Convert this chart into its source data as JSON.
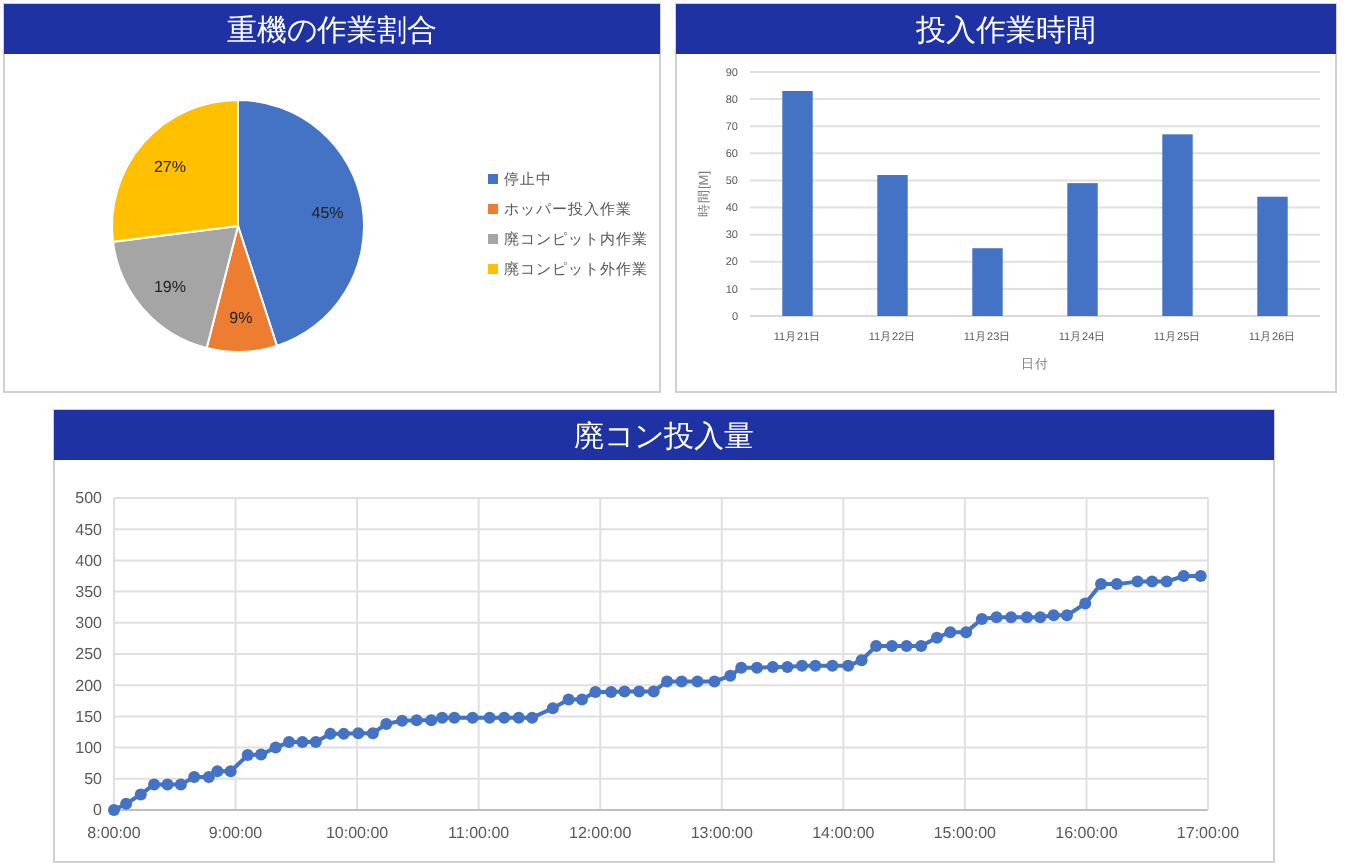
{
  "chart_data": [
    {
      "type": "pie",
      "title": "重機の作業割合",
      "categories": [
        "停止中",
        "ホッパー投入作業",
        "廃コンピット内作業",
        "廃コンピット外作業"
      ],
      "values": [
        45,
        9,
        19,
        27
      ],
      "colors": [
        "#4472c4",
        "#ed7d31",
        "#a5a5a5",
        "#ffc000"
      ],
      "value_labels": [
        "45%",
        "9%",
        "19%",
        "27%"
      ],
      "legend": "right"
    },
    {
      "type": "bar",
      "title": "投入作業時間",
      "categories": [
        "11月21日",
        "11月22日",
        "11月23日",
        "11月24日",
        "11月25日",
        "11月26日"
      ],
      "values": [
        83,
        52,
        25,
        49,
        67,
        44
      ],
      "color": "#4472c4",
      "xlabel": "日付",
      "ylabel": "時間[M]",
      "ylim": [
        0,
        90
      ],
      "yticks": [
        0,
        10,
        20,
        30,
        40,
        50,
        60,
        70,
        80,
        90
      ],
      "grid": "y"
    },
    {
      "type": "line",
      "title": "廃コン投入量",
      "series": [
        {
          "color": "#4472c4",
          "x": [
            8.0,
            8.1,
            8.22,
            8.33,
            8.44,
            8.55,
            8.66,
            8.78,
            8.85,
            8.96,
            9.1,
            9.21,
            9.33,
            9.44,
            9.55,
            9.66,
            9.78,
            9.89,
            10.01,
            10.13,
            10.24,
            10.37,
            10.49,
            10.61,
            10.7,
            10.8,
            10.95,
            11.09,
            11.21,
            11.33,
            11.44,
            11.61,
            11.74,
            11.85,
            11.96,
            12.09,
            12.2,
            12.32,
            12.44,
            12.55,
            12.67,
            12.8,
            12.94,
            13.07,
            13.16,
            13.29,
            13.42,
            13.54,
            13.66,
            13.77,
            13.91,
            14.04,
            14.15,
            14.27,
            14.4,
            14.52,
            14.64,
            14.77,
            14.88,
            15.01,
            15.14,
            15.26,
            15.38,
            15.51,
            15.62,
            15.73,
            15.84,
            15.99,
            16.12,
            16.25,
            16.42,
            16.54,
            16.66,
            16.8,
            16.94
          ],
          "values": [
            0,
            10,
            25,
            41,
            41,
            41,
            53,
            53,
            62,
            62,
            88,
            89,
            100,
            109,
            109,
            109,
            122,
            122,
            123,
            123,
            138,
            143,
            144,
            144,
            148,
            148,
            148,
            148,
            148,
            148,
            148,
            163,
            177,
            177,
            189,
            189,
            190,
            190,
            190,
            206,
            206,
            206,
            206,
            215,
            228,
            228,
            229,
            229,
            231,
            231,
            231,
            231,
            240,
            263,
            263,
            263,
            263,
            276,
            285,
            285,
            306,
            309,
            309,
            309,
            309,
            312,
            312,
            331,
            362,
            362,
            366,
            366,
            366,
            375,
            375
          ]
        }
      ],
      "xlim": [
        8,
        17
      ],
      "xticks": [
        {
          "value": 8,
          "label": "8:00:00"
        },
        {
          "value": 9,
          "label": "9:00:00"
        },
        {
          "value": 10,
          "label": "10:00:00"
        },
        {
          "value": 11,
          "label": "11:00:00"
        },
        {
          "value": 12,
          "label": "12:00:00"
        },
        {
          "value": 13,
          "label": "13:00:00"
        },
        {
          "value": 14,
          "label": "14:00:00"
        },
        {
          "value": 15,
          "label": "15:00:00"
        },
        {
          "value": 16,
          "label": "16:00:00"
        },
        {
          "value": 17,
          "label": "17:00:00"
        }
      ],
      "ylim": [
        0,
        500
      ],
      "yticks": [
        0,
        50,
        100,
        150,
        200,
        250,
        300,
        350,
        400,
        450,
        500
      ],
      "grid": true,
      "marker": "circle",
      "line_style": "solid"
    }
  ]
}
